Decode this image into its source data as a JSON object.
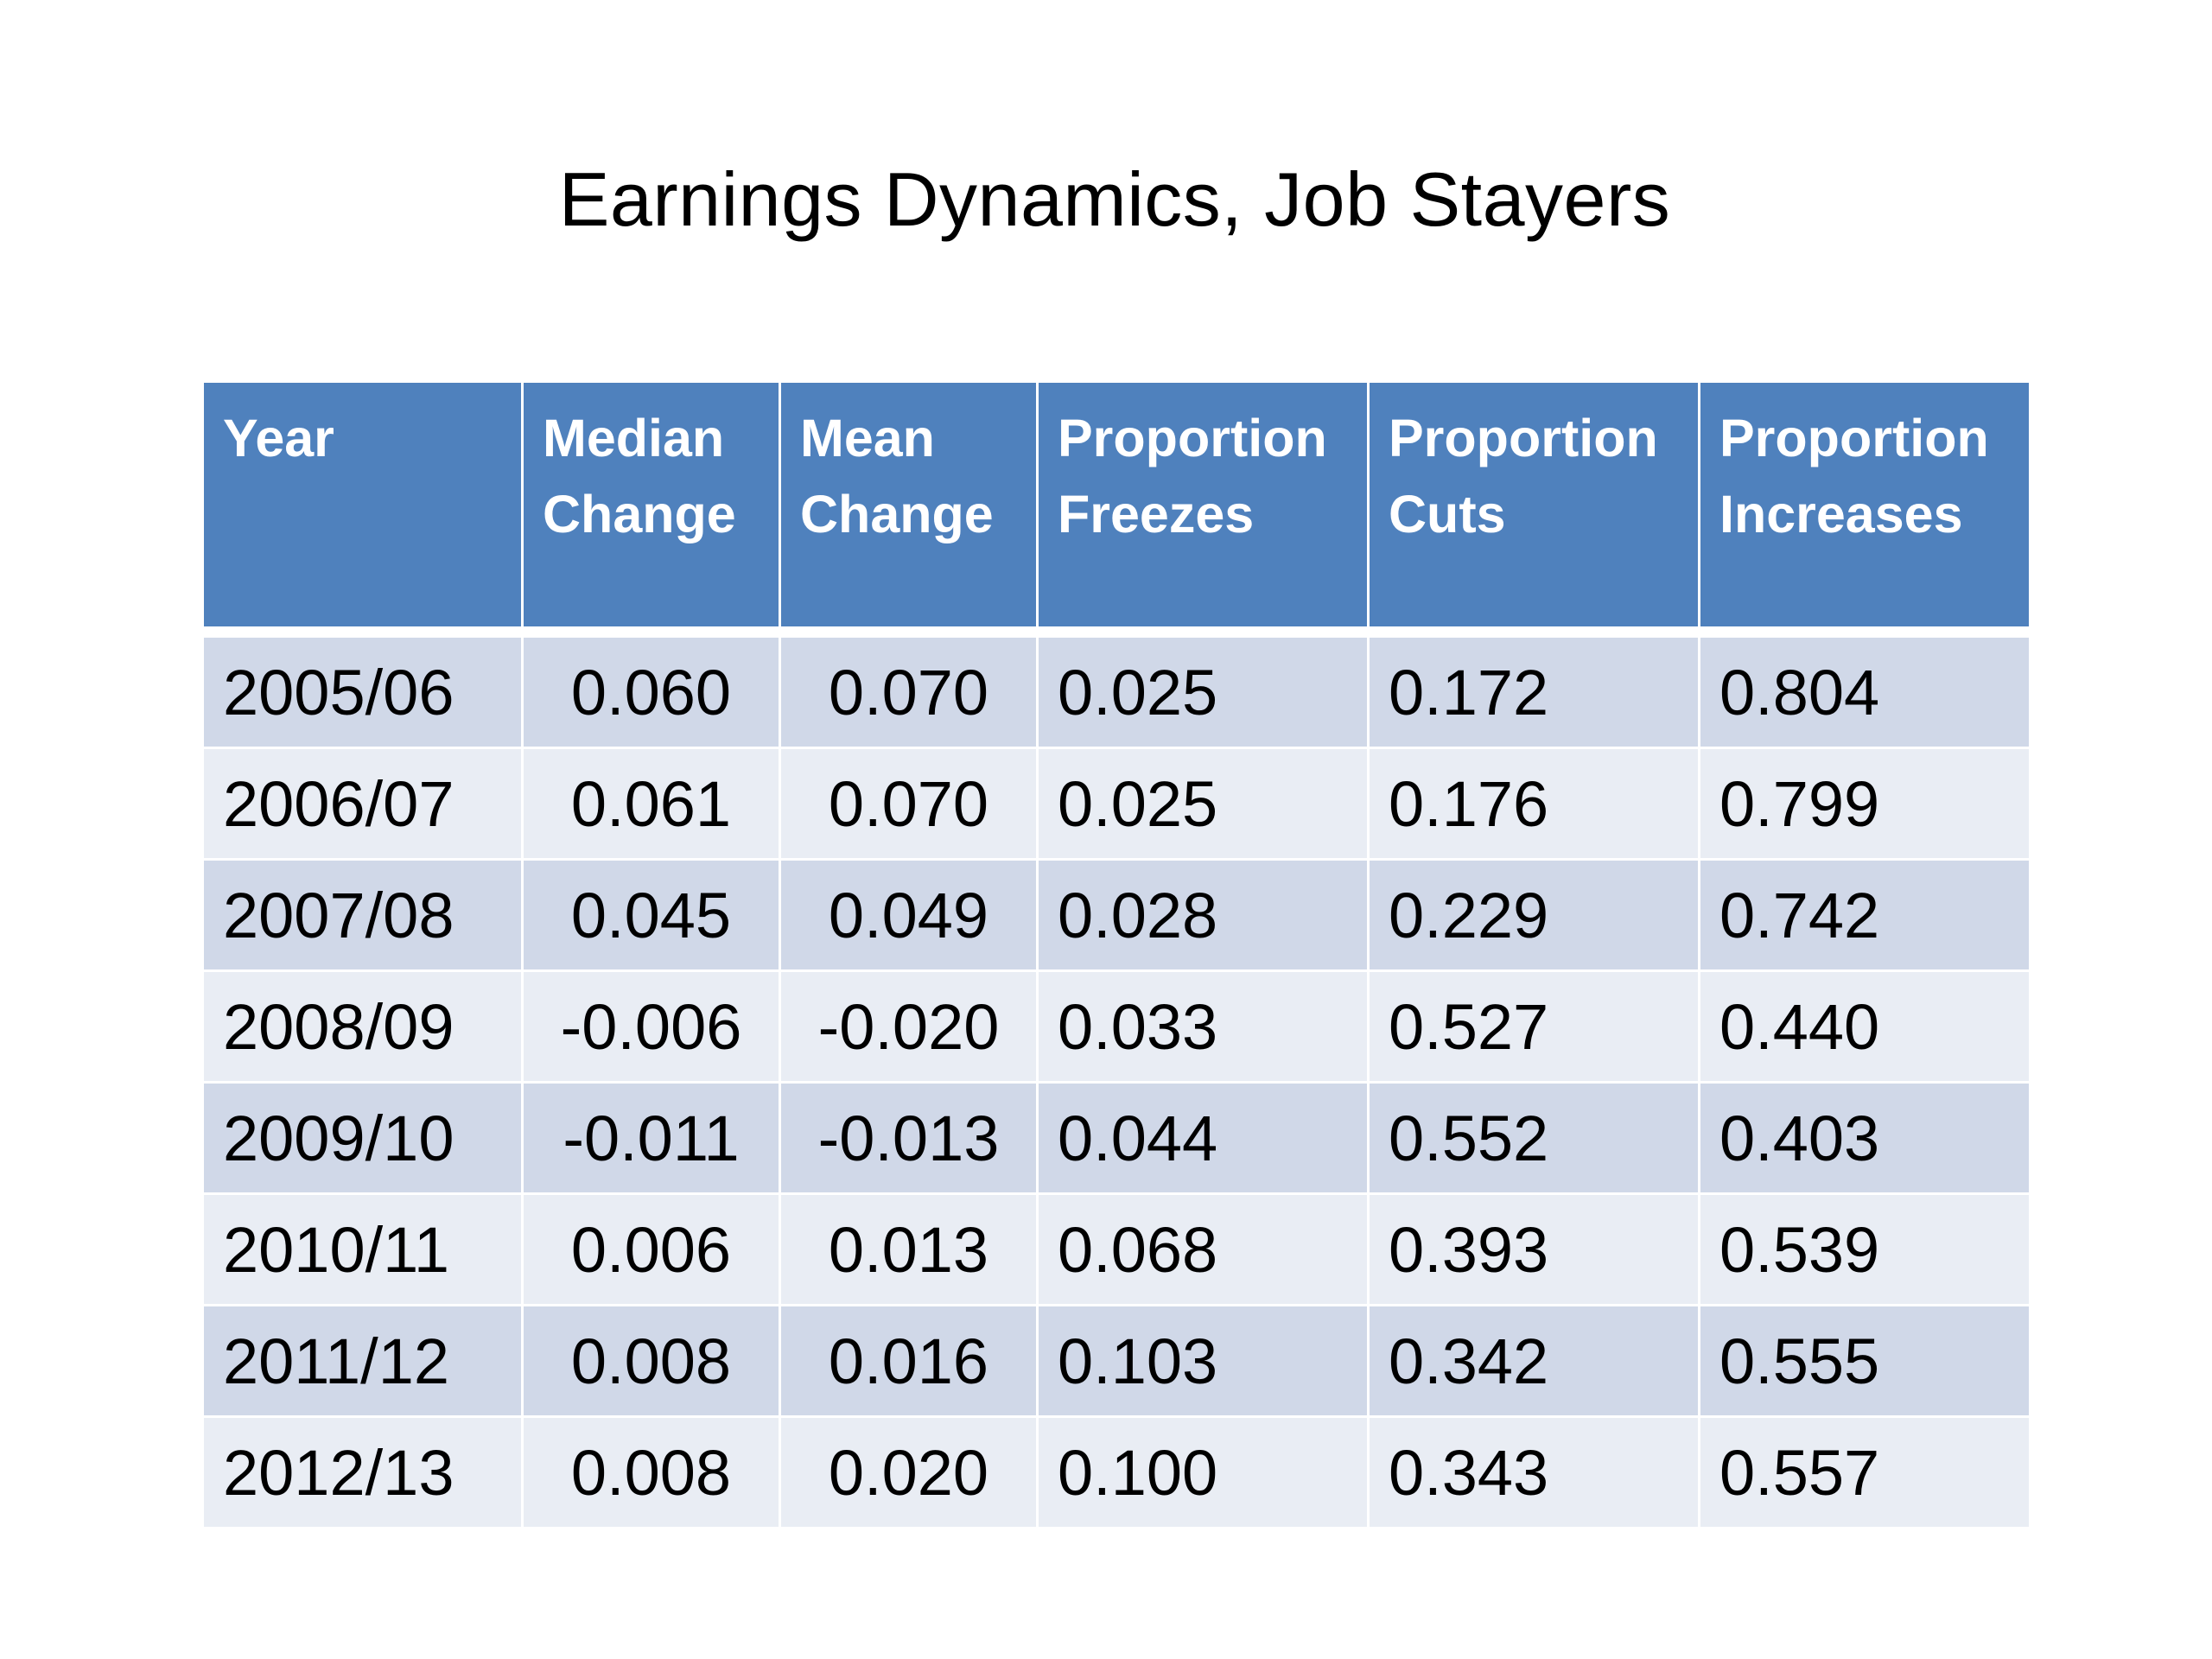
{
  "title": "Earnings Dynamics, Job Stayers",
  "table": {
    "columns": [
      {
        "line1": "Year",
        "line2": ""
      },
      {
        "line1": "Median",
        "line2": "Change"
      },
      {
        "line1": "Mean",
        "line2": "Change"
      },
      {
        "line1": "Proportion",
        "line2": "Freezes"
      },
      {
        "line1": "Proportion",
        "line2": "Cuts"
      },
      {
        "line1": "Proportion",
        "line2": "Increases"
      }
    ],
    "rows": [
      [
        "2005/06",
        "0.060",
        "0.070",
        "0.025",
        "0.172",
        "0.804"
      ],
      [
        "2006/07",
        "0.061",
        "0.070",
        "0.025",
        "0.176",
        "0.799"
      ],
      [
        "2007/08",
        "0.045",
        "0.049",
        "0.028",
        "0.229",
        "0.742"
      ],
      [
        "2008/09",
        "-0.006",
        "-0.020",
        "0.033",
        "0.527",
        "0.440"
      ],
      [
        "2009/10",
        "-0.011",
        "-0.013",
        "0.044",
        "0.552",
        "0.403"
      ],
      [
        "2010/11",
        "0.006",
        "0.013",
        "0.068",
        "0.393",
        "0.539"
      ],
      [
        "2011/12",
        "0.008",
        "0.016",
        "0.103",
        "0.342",
        "0.555"
      ],
      [
        "2012/13",
        "0.008",
        "0.020",
        "0.100",
        "0.343",
        "0.557"
      ]
    ]
  },
  "colors": {
    "header_bg": "#4f81bd",
    "header_text": "#ffffff",
    "row_odd": "#d0d8e8",
    "row_even": "#e9edf4"
  }
}
